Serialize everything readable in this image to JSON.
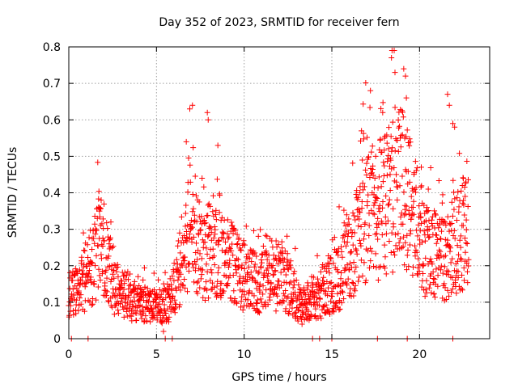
{
  "chart_data": {
    "type": "scatter",
    "title": "Day 352 of 2023, SRMTID for receiver fern",
    "xlabel": "GPS time / hours",
    "ylabel": "SRMTID / TECUs",
    "xlim": [
      0,
      24
    ],
    "ylim": [
      0,
      0.8
    ],
    "x_ticks": [
      0,
      5,
      10,
      15,
      20
    ],
    "x_tick_labels": [
      "0",
      "5",
      "10",
      "15",
      "20"
    ],
    "y_ticks": [
      0,
      0.1,
      0.2,
      0.3,
      0.4,
      0.5,
      0.6,
      0.7,
      0.8
    ],
    "y_tick_labels": [
      "0",
      "0.1",
      "0.2",
      "0.3",
      "0.4",
      "0.5",
      "0.6",
      "0.7",
      "0.8"
    ],
    "grid": true,
    "marker": "+",
    "color": "#ff0000",
    "data_time_range_hours": [
      0,
      22.8
    ],
    "profile": [
      [
        0.0,
        0.11
      ],
      [
        0.5,
        0.13
      ],
      [
        1.0,
        0.17
      ],
      [
        1.5,
        0.22
      ],
      [
        1.8,
        0.28
      ],
      [
        2.3,
        0.2
      ],
      [
        2.7,
        0.13
      ],
      [
        3.5,
        0.11
      ],
      [
        4.5,
        0.09
      ],
      [
        5.2,
        0.08
      ],
      [
        5.7,
        0.1
      ],
      [
        6.2,
        0.17
      ],
      [
        6.7,
        0.27
      ],
      [
        7.0,
        0.33
      ],
      [
        7.4,
        0.26
      ],
      [
        7.8,
        0.22
      ],
      [
        8.2,
        0.27
      ],
      [
        8.6,
        0.24
      ],
      [
        9.2,
        0.21
      ],
      [
        10.0,
        0.17
      ],
      [
        11.0,
        0.15
      ],
      [
        12.0,
        0.17
      ],
      [
        12.6,
        0.15
      ],
      [
        13.2,
        0.09
      ],
      [
        14.0,
        0.11
      ],
      [
        14.8,
        0.14
      ],
      [
        15.3,
        0.17
      ],
      [
        15.8,
        0.19
      ],
      [
        16.3,
        0.25
      ],
      [
        16.8,
        0.32
      ],
      [
        17.3,
        0.34
      ],
      [
        17.8,
        0.36
      ],
      [
        18.2,
        0.39
      ],
      [
        18.6,
        0.41
      ],
      [
        19.0,
        0.42
      ],
      [
        19.5,
        0.36
      ],
      [
        20.0,
        0.28
      ],
      [
        20.5,
        0.24
      ],
      [
        21.0,
        0.22
      ],
      [
        21.5,
        0.21
      ],
      [
        22.0,
        0.27
      ],
      [
        22.8,
        0.29
      ]
    ],
    "notable_points": [
      [
        6.7,
        0.54
      ],
      [
        6.9,
        0.63
      ],
      [
        7.05,
        0.64
      ],
      [
        7.6,
        0.44
      ],
      [
        7.9,
        0.62
      ],
      [
        7.95,
        0.6
      ],
      [
        8.5,
        0.53
      ],
      [
        1.7,
        0.36
      ],
      [
        1.75,
        0.35
      ],
      [
        2.4,
        0.32
      ],
      [
        17.2,
        0.68
      ],
      [
        17.9,
        0.62
      ],
      [
        18.4,
        0.77
      ],
      [
        18.6,
        0.73
      ],
      [
        19.1,
        0.74
      ],
      [
        19.2,
        0.72
      ],
      [
        19.25,
        0.66
      ],
      [
        18.0,
        0.55
      ],
      [
        18.9,
        0.55
      ],
      [
        21.6,
        0.67
      ],
      [
        21.7,
        0.64
      ],
      [
        21.9,
        0.59
      ],
      [
        22.0,
        0.58
      ],
      [
        20.1,
        0.47
      ],
      [
        22.5,
        0.44
      ],
      [
        16.6,
        0.4
      ],
      [
        17.5,
        0.5
      ],
      [
        20.5,
        0.41
      ],
      [
        22.6,
        0.39
      ]
    ],
    "low_points": [
      [
        0.15,
        0.0
      ],
      [
        1.1,
        0.0
      ],
      [
        5.5,
        0.0
      ],
      [
        5.9,
        0.0
      ],
      [
        13.9,
        0.0
      ],
      [
        14.3,
        0.0
      ],
      [
        15.0,
        0.0
      ],
      [
        17.6,
        0.0
      ],
      [
        19.3,
        0.0
      ],
      [
        21.9,
        0.0
      ],
      [
        5.4,
        0.02
      ],
      [
        13.3,
        0.04
      ]
    ]
  }
}
